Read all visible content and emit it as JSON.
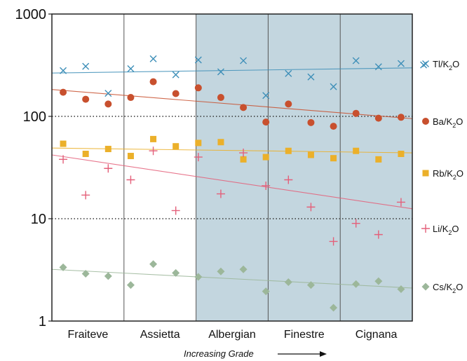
{
  "chart_data": {
    "type": "scatter",
    "yscale": "log",
    "ylim": [
      1,
      1000
    ],
    "yticks": [
      "1",
      "10",
      "100",
      "1000"
    ],
    "categories": [
      "Fraiteve",
      "Assietta",
      "Albergian",
      "Finestre",
      "Cignana"
    ],
    "shaded_categories": [
      "Albergian",
      "Finestre",
      "Cignana"
    ],
    "shade_color": "#c3d6df",
    "gridlines_at": [
      10,
      100
    ],
    "xlabel": "Increasing Grade",
    "series": [
      {
        "name": "Tl/K2O",
        "label_main": "Tl/K",
        "label_sub": "2",
        "label_end": "O",
        "marker": "x",
        "color": "#3e8fb8",
        "points": [
          [
            0,
            280
          ],
          [
            1,
            308
          ],
          [
            2,
            168
          ],
          [
            3,
            292
          ],
          [
            4,
            365
          ],
          [
            5,
            255
          ],
          [
            6,
            356
          ],
          [
            7,
            272
          ],
          [
            8,
            350
          ],
          [
            9,
            160
          ],
          [
            10,
            262
          ],
          [
            11,
            243
          ],
          [
            12,
            195
          ],
          [
            13,
            350
          ],
          [
            14,
            305
          ],
          [
            15,
            328
          ],
          [
            16,
            318
          ]
        ],
        "trend": [
          265,
          298
        ]
      },
      {
        "name": "Ba/K2O",
        "label_main": "Ba/K",
        "label_sub": "2",
        "label_end": "O",
        "marker": "circle",
        "color": "#c8502e",
        "points": [
          [
            0,
            172
          ],
          [
            1,
            147
          ],
          [
            2,
            132
          ],
          [
            3,
            153
          ],
          [
            4,
            218
          ],
          [
            5,
            167
          ],
          [
            6,
            190
          ],
          [
            7,
            153
          ],
          [
            8,
            122
          ],
          [
            9,
            88
          ],
          [
            10,
            132
          ],
          [
            11,
            87
          ],
          [
            12,
            80
          ],
          [
            13,
            107
          ],
          [
            14,
            96
          ],
          [
            15,
            98
          ]
        ],
        "trend": [
          183,
          95
        ]
      },
      {
        "name": "Rb/K2O",
        "label_main": "Rb/K",
        "label_sub": "2",
        "label_end": "O",
        "marker": "square",
        "color": "#ebb02a",
        "points": [
          [
            0,
            54
          ],
          [
            1,
            43
          ],
          [
            2,
            48
          ],
          [
            3,
            41
          ],
          [
            4,
            60
          ],
          [
            5,
            51
          ],
          [
            6,
            55
          ],
          [
            7,
            56
          ],
          [
            8,
            38
          ],
          [
            9,
            40
          ],
          [
            10,
            46
          ],
          [
            11,
            42
          ],
          [
            12,
            39
          ],
          [
            13,
            46
          ],
          [
            14,
            38
          ],
          [
            15,
            43
          ]
        ],
        "trend": [
          49,
          44
        ]
      },
      {
        "name": "Li/K2O",
        "label_main": "Li/K",
        "label_sub": "2",
        "label_end": "O",
        "marker": "plus",
        "color": "#e4607a",
        "points": [
          [
            0,
            38
          ],
          [
            1,
            17
          ],
          [
            2,
            31
          ],
          [
            3,
            24
          ],
          [
            4,
            46
          ],
          [
            5,
            12
          ],
          [
            6,
            40
          ],
          [
            7,
            17.5
          ],
          [
            8,
            44
          ],
          [
            9,
            21
          ],
          [
            10,
            24
          ],
          [
            11,
            13
          ],
          [
            12,
            6
          ],
          [
            13,
            9
          ],
          [
            14,
            7
          ],
          [
            15,
            14.5
          ]
        ],
        "trend": [
          42,
          12.5
        ]
      },
      {
        "name": "Cs/K2O",
        "label_main": "Cs/K",
        "label_sub": "2",
        "label_end": "O",
        "marker": "diamond",
        "color": "#9cb79a",
        "points": [
          [
            0,
            3.35
          ],
          [
            1,
            2.9
          ],
          [
            2,
            2.75
          ],
          [
            3,
            2.25
          ],
          [
            4,
            3.6
          ],
          [
            5,
            2.95
          ],
          [
            6,
            2.7
          ],
          [
            7,
            3.05
          ],
          [
            8,
            3.2
          ],
          [
            9,
            1.95
          ],
          [
            10,
            2.4
          ],
          [
            11,
            2.25
          ],
          [
            12,
            1.35
          ],
          [
            13,
            2.3
          ],
          [
            14,
            2.45
          ],
          [
            15,
            2.05
          ]
        ],
        "trend": [
          3.2,
          2.1
        ]
      }
    ]
  }
}
